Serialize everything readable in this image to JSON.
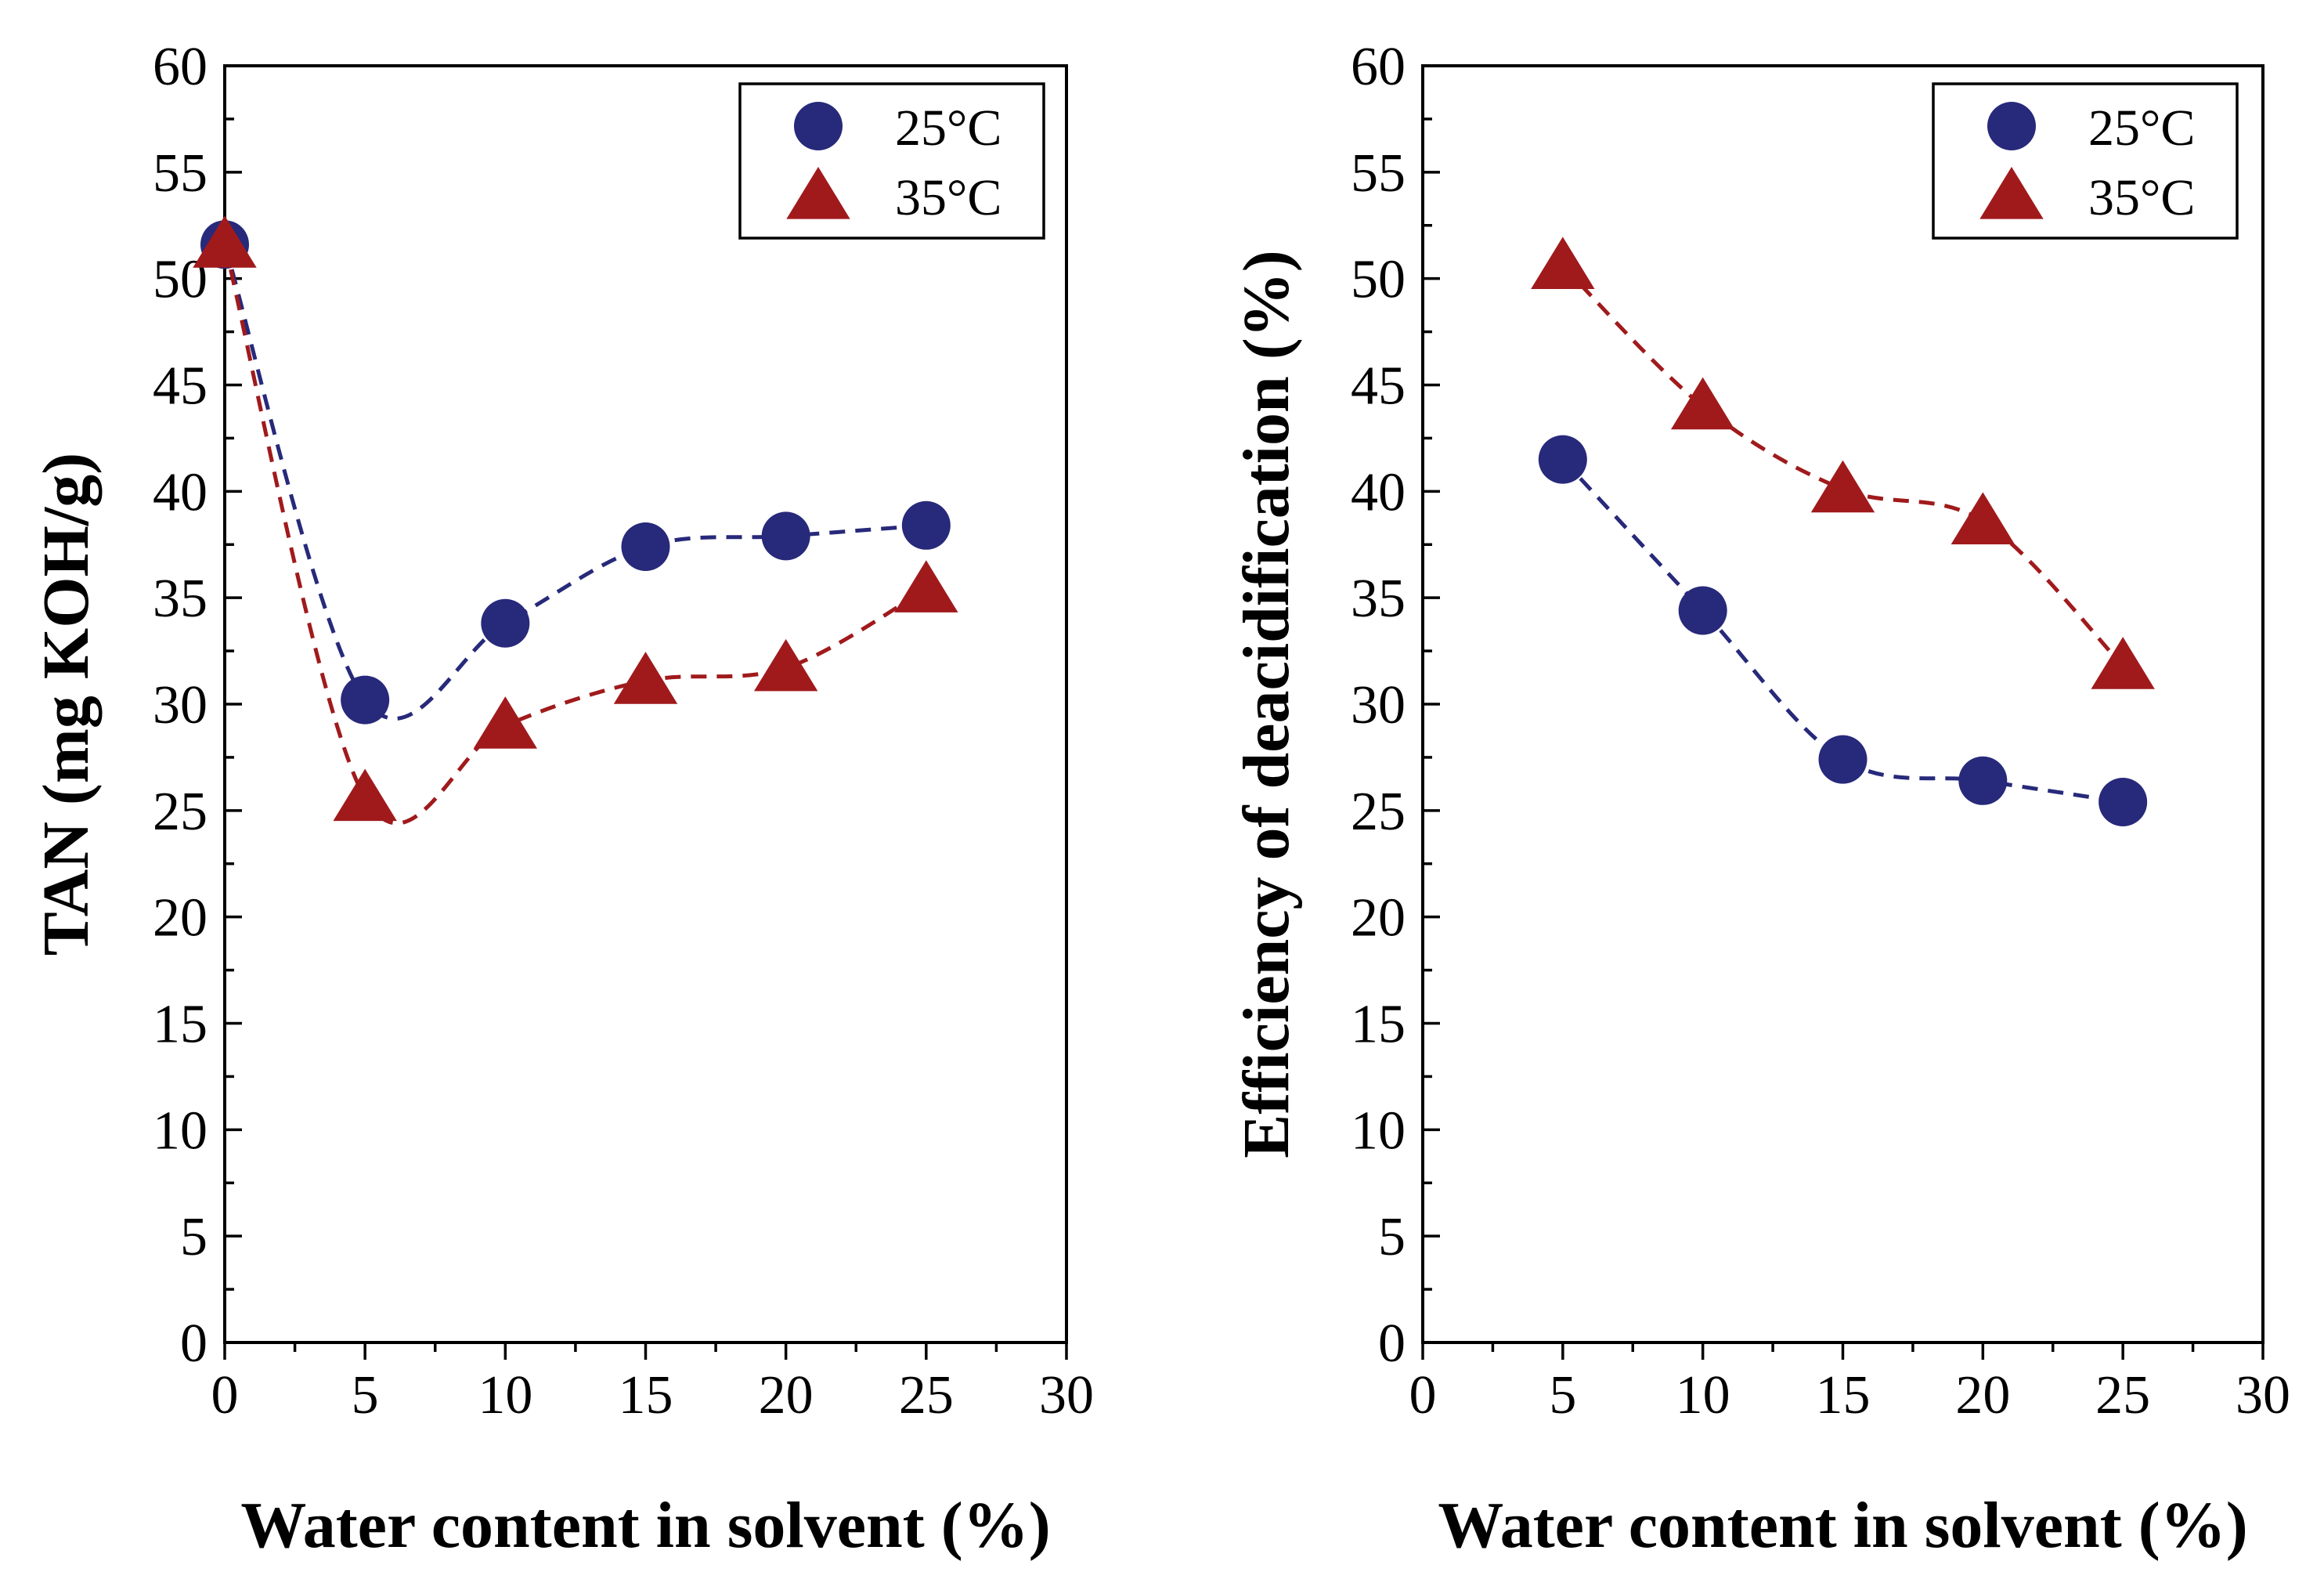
{
  "colors": {
    "series_25": "#27297a",
    "series_35": "#a01a1c",
    "axis": "#000000"
  },
  "chart_data": [
    {
      "type": "scatter",
      "xlabel": "Water content in solvent (%)",
      "ylabel": "TAN (mg KOH/g)",
      "xlim": [
        0,
        30
      ],
      "ylim": [
        0,
        60
      ],
      "xticks": [
        "0",
        "5",
        "10",
        "15",
        "20",
        "25",
        "30"
      ],
      "yticks": [
        "0",
        "5",
        "10",
        "15",
        "20",
        "25",
        "30",
        "35",
        "40",
        "45",
        "50",
        "55",
        "60"
      ],
      "grid": false,
      "legend_position": "top-right",
      "trend_lines": "dashed smooth curves",
      "series": [
        {
          "name": "25°C",
          "marker": "circle",
          "x": [
            0,
            5,
            10,
            15,
            20,
            25
          ],
          "y": [
            51.6,
            30.2,
            33.8,
            37.4,
            37.9,
            38.4
          ]
        },
        {
          "name": "35°C",
          "marker": "triangle",
          "x": [
            0,
            5,
            10,
            15,
            20,
            25
          ],
          "y": [
            51.6,
            25.6,
            29.0,
            31.1,
            31.7,
            35.4
          ]
        }
      ]
    },
    {
      "type": "scatter",
      "xlabel": "Water content in solvent (%)",
      "ylabel": "Efficiency of deacidification (%)",
      "xlim": [
        0,
        30
      ],
      "ylim": [
        0,
        60
      ],
      "xticks": [
        "0",
        "5",
        "10",
        "15",
        "20",
        "25",
        "30"
      ],
      "yticks": [
        "0",
        "5",
        "10",
        "15",
        "20",
        "25",
        "30",
        "35",
        "40",
        "45",
        "50",
        "55",
        "60"
      ],
      "grid": false,
      "legend_position": "top-right",
      "trend_lines": "dashed smooth curves",
      "series": [
        {
          "name": "25°C",
          "marker": "circle",
          "x": [
            5,
            10,
            15,
            20,
            25
          ],
          "y": [
            41.5,
            34.4,
            27.4,
            26.4,
            25.4
          ]
        },
        {
          "name": "35°C",
          "marker": "triangle",
          "x": [
            5,
            10,
            15,
            20,
            25
          ],
          "y": [
            50.6,
            44.0,
            40.1,
            38.6,
            31.8
          ]
        }
      ]
    }
  ]
}
